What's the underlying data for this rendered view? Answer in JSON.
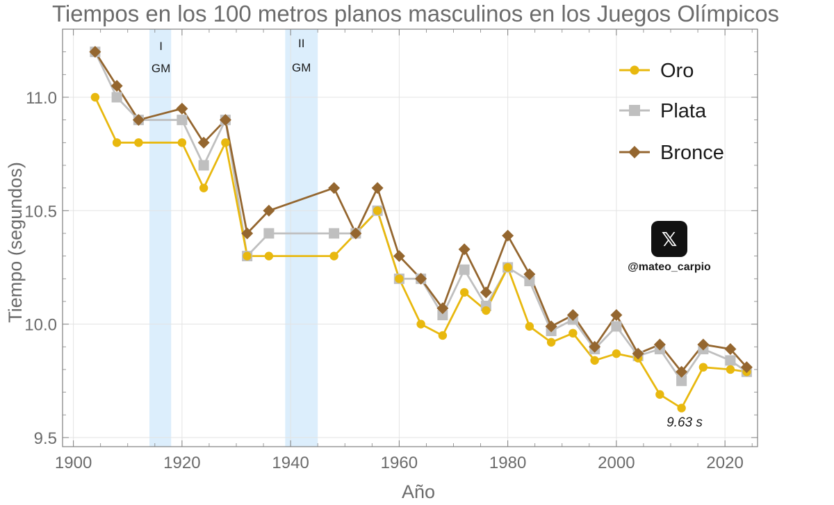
{
  "colors": {
    "oro": "#E8B80E",
    "plata": "#BFBFBF",
    "bronce": "#94662F",
    "war_band": "#DCEEFC",
    "grid": "#E3E3E3",
    "frame": "#7F7F7F"
  },
  "watermark": {
    "icon": "x-logo-icon",
    "logo_text": "𝕏",
    "handle": "@mateo_carpio"
  },
  "chart_data": {
    "type": "line",
    "title": "Tiempos en los 100 metros planos masculinos en los Juegos Olímpicos",
    "xlabel": "Año",
    "ylabel": "Tiempo (segundos)",
    "xlim": [
      1898,
      2026
    ],
    "ylim": [
      9.46,
      11.3
    ],
    "xticks": [
      1900,
      1920,
      1940,
      1960,
      1980,
      2000,
      2020
    ],
    "yticks": [
      9.5,
      10.0,
      10.5,
      11.0
    ],
    "ytick_labels": [
      "9.5",
      "10.0",
      "10.5",
      "11.0"
    ],
    "grid": true,
    "legend_position": "top-right",
    "war_bands": [
      {
        "start": 1914,
        "end": 1918,
        "label_line1": "I",
        "label_line2": "GM"
      },
      {
        "start": 1939,
        "end": 1945,
        "label_line1": "II",
        "label_line2": "GM"
      }
    ],
    "annotations": [
      {
        "x": 2012,
        "y": 9.63,
        "text": "9.63 s"
      }
    ],
    "series": [
      {
        "name": "Oro",
        "marker": "circle",
        "color": "#E8B80E",
        "x": [
          1904,
          1908,
          1912,
          1920,
          1924,
          1928,
          1932,
          1936,
          1948,
          1952,
          1956,
          1960,
          1964,
          1968,
          1972,
          1976,
          1980,
          1984,
          1988,
          1992,
          1996,
          2000,
          2004,
          2008,
          2012,
          2016,
          2021,
          2024
        ],
        "y": [
          11.0,
          10.8,
          10.8,
          10.8,
          10.6,
          10.8,
          10.3,
          10.3,
          10.3,
          10.4,
          10.5,
          10.2,
          10.0,
          9.95,
          10.14,
          10.06,
          10.25,
          9.99,
          9.92,
          9.96,
          9.84,
          9.87,
          9.85,
          9.69,
          9.63,
          9.81,
          9.8,
          9.79
        ]
      },
      {
        "name": "Plata",
        "marker": "square",
        "color": "#BFBFBF",
        "x": [
          1904,
          1908,
          1912,
          1920,
          1924,
          1928,
          1932,
          1936,
          1948,
          1952,
          1956,
          1960,
          1964,
          1968,
          1972,
          1976,
          1980,
          1984,
          1988,
          1992,
          1996,
          2000,
          2004,
          2008,
          2012,
          2016,
          2021,
          2024
        ],
        "y": [
          11.2,
          11.0,
          10.9,
          10.9,
          10.7,
          10.9,
          10.3,
          10.4,
          10.4,
          10.4,
          10.5,
          10.2,
          10.2,
          10.04,
          10.24,
          10.08,
          10.25,
          10.19,
          9.97,
          10.02,
          9.89,
          9.99,
          9.86,
          9.89,
          9.75,
          9.89,
          9.84,
          9.79
        ]
      },
      {
        "name": "Bronce",
        "marker": "diamond",
        "color": "#94662F",
        "x": [
          1904,
          1908,
          1912,
          1920,
          1924,
          1928,
          1932,
          1936,
          1948,
          1952,
          1956,
          1960,
          1964,
          1968,
          1972,
          1976,
          1980,
          1984,
          1988,
          1992,
          1996,
          2000,
          2004,
          2008,
          2012,
          2016,
          2021,
          2024
        ],
        "y": [
          11.2,
          11.05,
          10.9,
          10.95,
          10.8,
          10.9,
          10.4,
          10.5,
          10.6,
          10.4,
          10.6,
          10.3,
          10.2,
          10.07,
          10.33,
          10.14,
          10.39,
          10.22,
          9.99,
          10.04,
          9.9,
          10.04,
          9.87,
          9.91,
          9.79,
          9.91,
          9.89,
          9.81
        ]
      }
    ]
  }
}
